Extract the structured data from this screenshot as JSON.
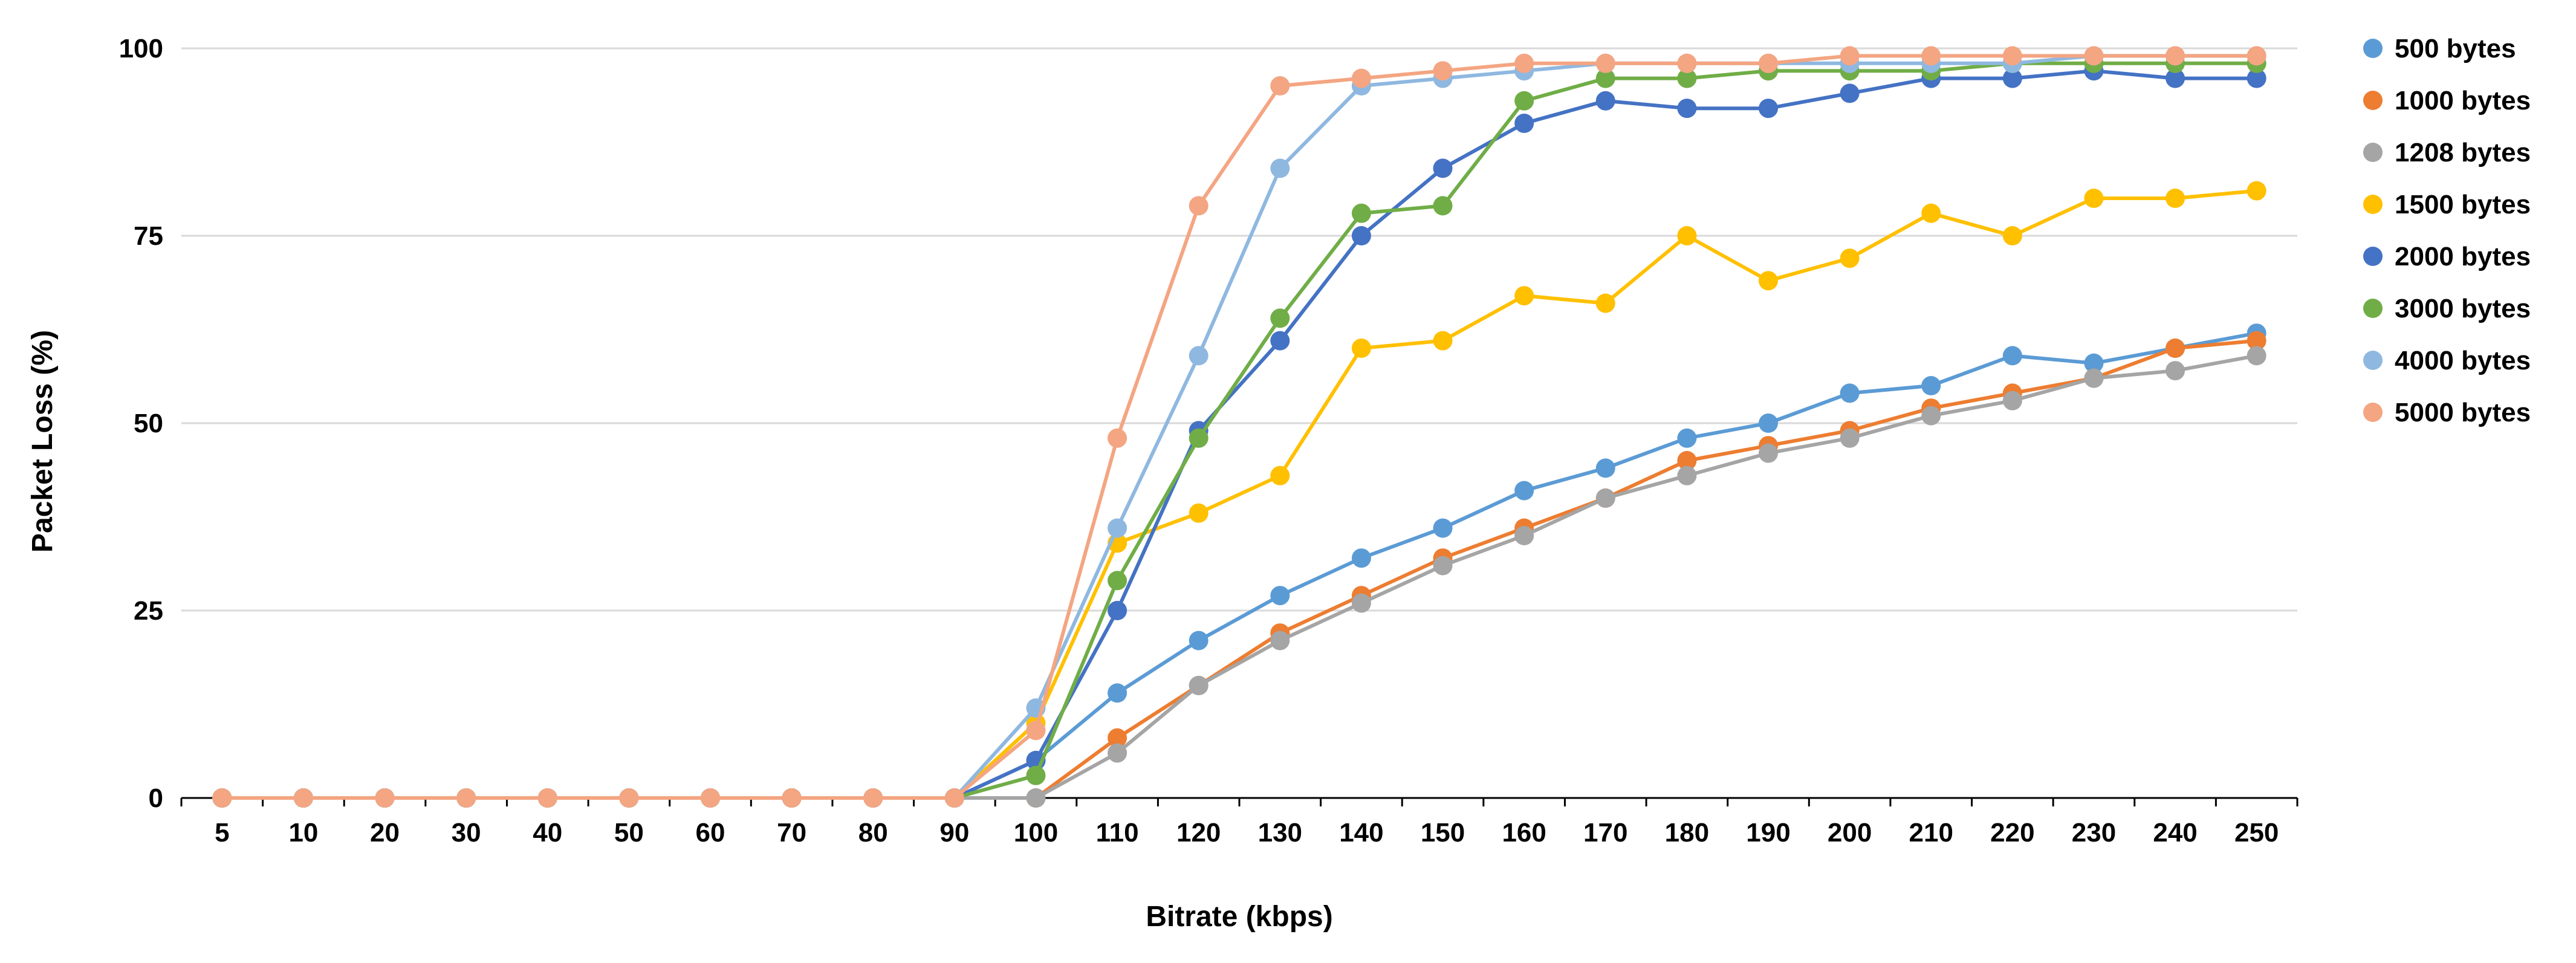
{
  "chart_data": {
    "type": "line",
    "title": "",
    "xlabel": "Bitrate (kbps)",
    "ylabel": "Packet Loss (%)",
    "ylim": [
      0,
      100
    ],
    "yticks": [
      0,
      25,
      50,
      75,
      100
    ],
    "grid": true,
    "legend_position": "right",
    "categories": [
      "5",
      "10",
      "20",
      "30",
      "40",
      "50",
      "60",
      "70",
      "80",
      "90",
      "100",
      "110",
      "120",
      "130",
      "140",
      "150",
      "160",
      "170",
      "180",
      "190",
      "200",
      "210",
      "220",
      "230",
      "240",
      "250"
    ],
    "series": [
      {
        "name": "500 bytes",
        "color": "#5B9BD5",
        "values": [
          0,
          0,
          0,
          0,
          0,
          0,
          0,
          0,
          0,
          0,
          5,
          14,
          21,
          27,
          32,
          36,
          41,
          44,
          48,
          50,
          54,
          55,
          59,
          58,
          60,
          62
        ]
      },
      {
        "name": "1000 bytes",
        "color": "#ED7D31",
        "values": [
          0,
          0,
          0,
          0,
          0,
          0,
          0,
          0,
          0,
          0,
          0,
          8,
          15,
          22,
          27,
          32,
          36,
          40,
          45,
          47,
          49,
          52,
          54,
          56,
          60,
          61
        ]
      },
      {
        "name": "1208 bytes",
        "color": "#A5A5A5",
        "values": [
          0,
          0,
          0,
          0,
          0,
          0,
          0,
          0,
          0,
          0,
          0,
          6,
          15,
          21,
          26,
          31,
          35,
          40,
          43,
          46,
          48,
          51,
          53,
          56,
          57,
          59
        ]
      },
      {
        "name": "1500 bytes",
        "color": "#FFC000",
        "values": [
          0,
          0,
          0,
          0,
          0,
          0,
          0,
          0,
          0,
          0,
          10,
          34,
          38,
          43,
          60,
          61,
          67,
          66,
          75,
          69,
          72,
          78,
          75,
          80,
          80,
          81
        ]
      },
      {
        "name": "2000 bytes",
        "color": "#4472C4",
        "values": [
          0,
          0,
          0,
          0,
          0,
          0,
          0,
          0,
          0,
          0,
          5,
          25,
          49,
          61,
          75,
          84,
          90,
          93,
          92,
          92,
          94,
          96,
          96,
          97,
          96,
          96
        ]
      },
      {
        "name": "3000 bytes",
        "color": "#70AD47",
        "values": [
          0,
          0,
          0,
          0,
          0,
          0,
          0,
          0,
          0,
          0,
          3,
          29,
          48,
          64,
          78,
          79,
          93,
          96,
          96,
          97,
          97,
          97,
          98,
          98,
          98,
          98
        ]
      },
      {
        "name": "4000 bytes",
        "color": "#8FB8E0",
        "values": [
          0,
          0,
          0,
          0,
          0,
          0,
          0,
          0,
          0,
          0,
          12,
          36,
          59,
          84,
          95,
          96,
          97,
          98,
          98,
          98,
          98,
          98,
          98,
          99,
          99,
          99
        ]
      },
      {
        "name": "5000 bytes",
        "color": "#F4A582",
        "values": [
          0,
          0,
          0,
          0,
          0,
          0,
          0,
          0,
          0,
          0,
          9,
          48,
          79,
          95,
          96,
          97,
          98,
          98,
          98,
          98,
          99,
          99,
          99,
          99,
          99,
          99
        ]
      }
    ]
  }
}
